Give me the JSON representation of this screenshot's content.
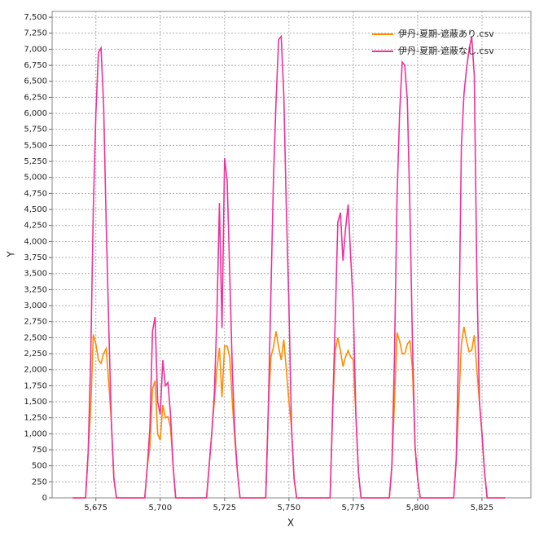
{
  "chart_data": {
    "type": "line",
    "xlabel": "X",
    "ylabel": "Y",
    "x": [
      5666,
      5670,
      5671,
      5672,
      5673,
      5674,
      5675,
      5676,
      5677,
      5678,
      5679,
      5680,
      5681,
      5682,
      5683,
      5694,
      5695,
      5696,
      5697,
      5698,
      5699,
      5700,
      5701,
      5702,
      5703,
      5704,
      5705,
      5706,
      5718,
      5719,
      5720,
      5721,
      5722,
      5723,
      5724,
      5725,
      5726,
      5727,
      5728,
      5729,
      5730,
      5731,
      5741,
      5742,
      5743,
      5744,
      5745,
      5746,
      5747,
      5748,
      5749,
      5750,
      5751,
      5752,
      5753,
      5765,
      5766,
      5767,
      5768,
      5769,
      5770,
      5771,
      5772,
      5773,
      5774,
      5775,
      5776,
      5777,
      5778,
      5789,
      5790,
      5791,
      5792,
      5793,
      5794,
      5795,
      5796,
      5797,
      5798,
      5799,
      5800,
      5801,
      5814,
      5815,
      5816,
      5817,
      5818,
      5819,
      5820,
      5821,
      5822,
      5823,
      5824,
      5825,
      5826,
      5827,
      5834
    ],
    "series": [
      {
        "name": "伊丹-夏期-遮蔽あり.csv",
        "color": "#ff8c00",
        "values": [
          0,
          0,
          0,
          700,
          1400,
          2550,
          2400,
          2150,
          2100,
          2250,
          2330,
          1800,
          1200,
          300,
          0,
          0,
          500,
          800,
          1700,
          1830,
          1000,
          900,
          1450,
          1250,
          1270,
          1100,
          500,
          0,
          0,
          500,
          1000,
          1500,
          2000,
          2340,
          1570,
          2370,
          2370,
          2200,
          1500,
          900,
          400,
          0,
          0,
          1400,
          2200,
          2350,
          2600,
          2350,
          2150,
          2470,
          2000,
          1500,
          1100,
          300,
          0,
          0,
          0,
          1400,
          2300,
          2500,
          2300,
          2050,
          2200,
          2300,
          2200,
          2150,
          1300,
          400,
          0,
          0,
          500,
          1500,
          2580,
          2450,
          2250,
          2250,
          2400,
          2450,
          2000,
          800,
          300,
          0,
          0,
          600,
          1500,
          2400,
          2670,
          2450,
          2280,
          2300,
          2540,
          2000,
          1500,
          1000,
          400,
          0,
          0
        ]
      },
      {
        "name": "伊丹-夏期-遮蔽なし.csv",
        "color": "#f0309c",
        "values": [
          0,
          0,
          0,
          700,
          2200,
          4500,
          6000,
          6950,
          7020,
          6150,
          4300,
          2700,
          1200,
          300,
          0,
          0,
          500,
          1100,
          2600,
          2820,
          1500,
          1300,
          2150,
          1750,
          1800,
          1300,
          500,
          0,
          0,
          500,
          1000,
          1600,
          2800,
          4600,
          2650,
          5300,
          4950,
          3500,
          2000,
          1000,
          400,
          0,
          0,
          1400,
          3200,
          5000,
          6200,
          7150,
          7200,
          6300,
          4500,
          3000,
          1100,
          300,
          0,
          0,
          0,
          1400,
          2800,
          4300,
          4450,
          3700,
          4200,
          4580,
          3750,
          3000,
          1300,
          400,
          0,
          0,
          500,
          2200,
          4700,
          6000,
          6800,
          6750,
          6200,
          4500,
          2400,
          800,
          300,
          0,
          0,
          600,
          2500,
          5500,
          6300,
          6700,
          7000,
          7200,
          6600,
          3500,
          1500,
          1000,
          400,
          0,
          0
        ]
      }
    ],
    "xlim": [
      5658,
      5844
    ],
    "ylim": [
      0,
      7590
    ],
    "xticks": [
      {
        "value": 5675,
        "label": "5,675"
      },
      {
        "value": 5700,
        "label": "5,700"
      },
      {
        "value": 5725,
        "label": "5,725"
      },
      {
        "value": 5750,
        "label": "5,750"
      },
      {
        "value": 5775,
        "label": "5,775"
      },
      {
        "value": 5800,
        "label": "5,800"
      },
      {
        "value": 5825,
        "label": "5,825"
      }
    ],
    "yticks": [
      0,
      250,
      500,
      750,
      {
        "value": 1000,
        "label": "1,000"
      },
      {
        "value": 1250,
        "label": "1,250"
      },
      {
        "value": 1500,
        "label": "1,500"
      },
      {
        "value": 1750,
        "label": "1,750"
      },
      {
        "value": 2000,
        "label": "2,000"
      },
      {
        "value": 2250,
        "label": "2,250"
      },
      {
        "value": 2500,
        "label": "2,500"
      },
      {
        "value": 2750,
        "label": "2,750"
      },
      {
        "value": 3000,
        "label": "3,000"
      },
      {
        "value": 3250,
        "label": "3,250"
      },
      {
        "value": 3500,
        "label": "3,500"
      },
      {
        "value": 3750,
        "label": "3,750"
      },
      {
        "value": 4000,
        "label": "4,000"
      },
      {
        "value": 4250,
        "label": "4,250"
      },
      {
        "value": 4500,
        "label": "4,500"
      },
      {
        "value": 4750,
        "label": "4,750"
      },
      {
        "value": 5000,
        "label": "5,000"
      },
      {
        "value": 5250,
        "label": "5,250"
      },
      {
        "value": 5500,
        "label": "5,500"
      },
      {
        "value": 5750,
        "label": "5,750"
      },
      {
        "value": 6000,
        "label": "6,000"
      },
      {
        "value": 6250,
        "label": "6,250"
      },
      {
        "value": 6500,
        "label": "6,500"
      },
      {
        "value": 6750,
        "label": "6,750"
      },
      {
        "value": 7000,
        "label": "7,000"
      },
      {
        "value": 7250,
        "label": "7,250"
      },
      {
        "value": 7500,
        "label": "7,500"
      }
    ],
    "grid": true,
    "legend": "upper right"
  }
}
